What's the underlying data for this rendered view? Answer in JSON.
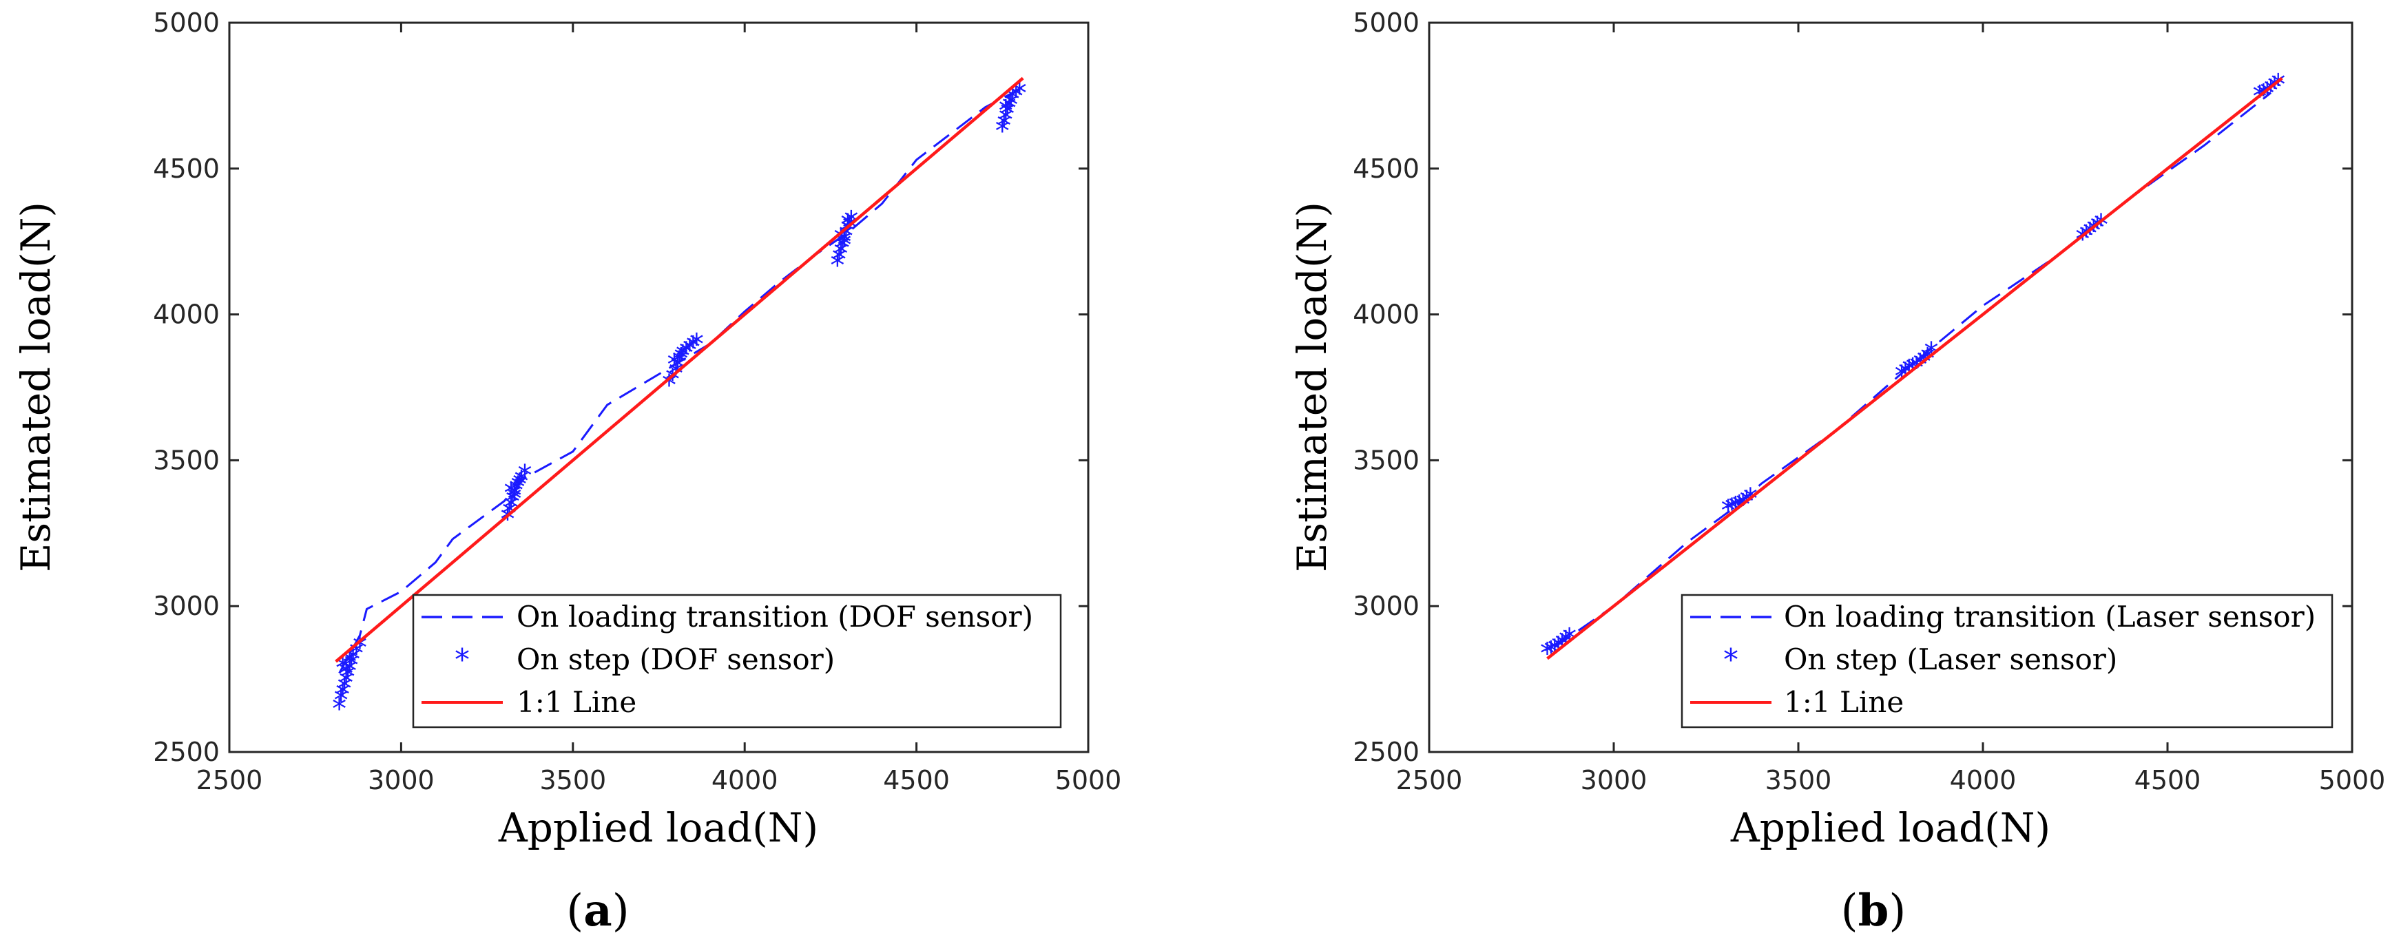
{
  "colors": {
    "data": "#1a1aff",
    "fit": "#ff1a1a",
    "axis": "#262626"
  },
  "chart_data": [
    {
      "type": "scatter",
      "panel_label": "a",
      "xlabel": "Applied load(N)",
      "ylabel": "Estimated load(N)",
      "xlim": [
        2500,
        5000
      ],
      "ylim": [
        2500,
        5000
      ],
      "xticks": [
        2500,
        3000,
        3500,
        4000,
        4500,
        5000
      ],
      "yticks": [
        2500,
        3000,
        3500,
        4000,
        4500,
        5000
      ],
      "legend_position": "bottom-right",
      "legend": [
        "On loading transition (DOF sensor)",
        "On step (DOF sensor)",
        "1:1 Line"
      ],
      "series": [
        {
          "name": "On loading transition (DOF sensor)",
          "style": "dashed",
          "x": [
            2820,
            2880,
            2900,
            3000,
            3100,
            3150,
            3300,
            3360,
            3500,
            3600,
            3700,
            3800,
            3900,
            4000,
            4100,
            4200,
            4300,
            4400,
            4500,
            4600,
            4700,
            4780
          ],
          "y": [
            2770,
            2900,
            2990,
            3050,
            3150,
            3230,
            3360,
            3440,
            3530,
            3690,
            3760,
            3830,
            3900,
            4010,
            4110,
            4200,
            4280,
            4380,
            4530,
            4620,
            4710,
            4760
          ]
        },
        {
          "name": "On step (DOF sensor)",
          "style": "markers",
          "x": [
            2820,
            2825,
            2830,
            2835,
            2840,
            2845,
            2850,
            2855,
            2860,
            2870,
            2880,
            2830,
            2840,
            2850,
            3310,
            3315,
            3320,
            3325,
            3330,
            3335,
            3340,
            3345,
            3350,
            3360,
            3320,
            3330,
            3780,
            3790,
            3800,
            3805,
            3810,
            3815,
            3820,
            3830,
            3840,
            3850,
            3860,
            3795,
            4270,
            4275,
            4280,
            4285,
            4290,
            4295,
            4300,
            4305,
            4310,
            4290,
            4280,
            4300,
            4750,
            4755,
            4760,
            4765,
            4770,
            4775,
            4780,
            4790,
            4800,
            4760
          ],
          "y": [
            2650,
            2680,
            2700,
            2720,
            2740,
            2760,
            2780,
            2800,
            2820,
            2840,
            2860,
            2790,
            2770,
            2810,
            3300,
            3320,
            3340,
            3360,
            3380,
            3400,
            3410,
            3420,
            3430,
            3450,
            3390,
            3370,
            3760,
            3780,
            3800,
            3820,
            3840,
            3850,
            3860,
            3870,
            3880,
            3890,
            3900,
            3830,
            4170,
            4190,
            4210,
            4230,
            4250,
            4270,
            4290,
            4300,
            4320,
            4240,
            4260,
            4310,
            4630,
            4650,
            4670,
            4690,
            4710,
            4720,
            4740,
            4750,
            4760,
            4700
          ]
        },
        {
          "name": "1:1 Line",
          "style": "solid",
          "x": [
            2810,
            4810
          ],
          "y": [
            2810,
            4810
          ]
        }
      ]
    },
    {
      "type": "scatter",
      "panel_label": "b",
      "xlabel": "Applied load(N)",
      "ylabel": "Estimated load(N)",
      "xlim": [
        2500,
        5000
      ],
      "ylim": [
        2500,
        5000
      ],
      "xticks": [
        2500,
        3000,
        3500,
        4000,
        4500,
        5000
      ],
      "yticks": [
        2500,
        3000,
        3500,
        4000,
        4500,
        5000
      ],
      "legend_position": "bottom-right",
      "legend": [
        "On loading transition (Laser sensor)",
        "On step (Laser sensor)",
        "1:1 Line"
      ],
      "series": [
        {
          "name": "On loading transition (Laser sensor)",
          "style": "dashed",
          "x": [
            2840,
            3000,
            3200,
            3340,
            3400,
            3600,
            3800,
            4000,
            4200,
            4290,
            4400,
            4600,
            4780
          ],
          "y": [
            2860,
            3000,
            3220,
            3350,
            3420,
            3600,
            3820,
            4030,
            4200,
            4290,
            4400,
            4580,
            4760
          ]
        },
        {
          "name": "On step (Laser sensor)",
          "style": "markers",
          "x": [
            2820,
            2830,
            2840,
            2850,
            2860,
            2870,
            2880,
            3310,
            3320,
            3330,
            3340,
            3350,
            3360,
            3370,
            3780,
            3790,
            3800,
            3810,
            3820,
            3830,
            3840,
            3850,
            3860,
            4270,
            4280,
            4290,
            4300,
            4310,
            4320,
            4750,
            4760,
            4770,
            4780,
            4790,
            4800
          ],
          "y": [
            2840,
            2845,
            2850,
            2860,
            2870,
            2880,
            2890,
            3330,
            3335,
            3340,
            3345,
            3350,
            3360,
            3370,
            3790,
            3800,
            3810,
            3815,
            3820,
            3830,
            3840,
            3850,
            3870,
            4260,
            4270,
            4280,
            4290,
            4300,
            4310,
            4750,
            4755,
            4760,
            4770,
            4780,
            4790
          ]
        },
        {
          "name": "1:1 Line",
          "style": "solid",
          "x": [
            2820,
            4810
          ],
          "y": [
            2820,
            4810
          ]
        }
      ]
    }
  ]
}
